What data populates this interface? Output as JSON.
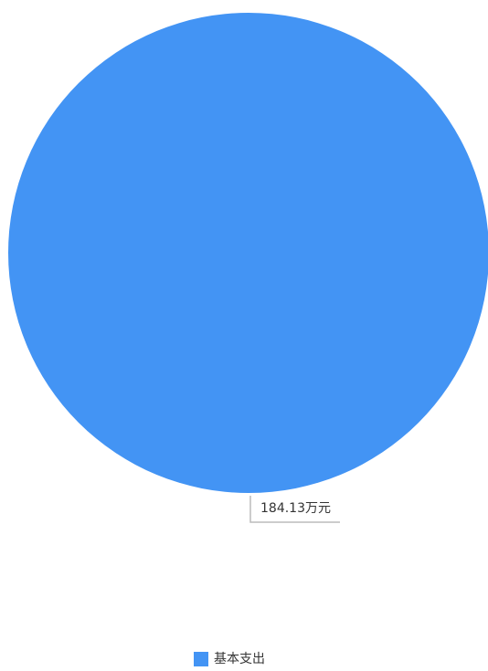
{
  "chart_data": {
    "type": "pie",
    "categories": [
      "基本支出"
    ],
    "values": [
      184.13
    ],
    "value_labels": [
      "184.13万元"
    ],
    "colors": [
      "#4394f4"
    ],
    "legend": "bottom"
  }
}
